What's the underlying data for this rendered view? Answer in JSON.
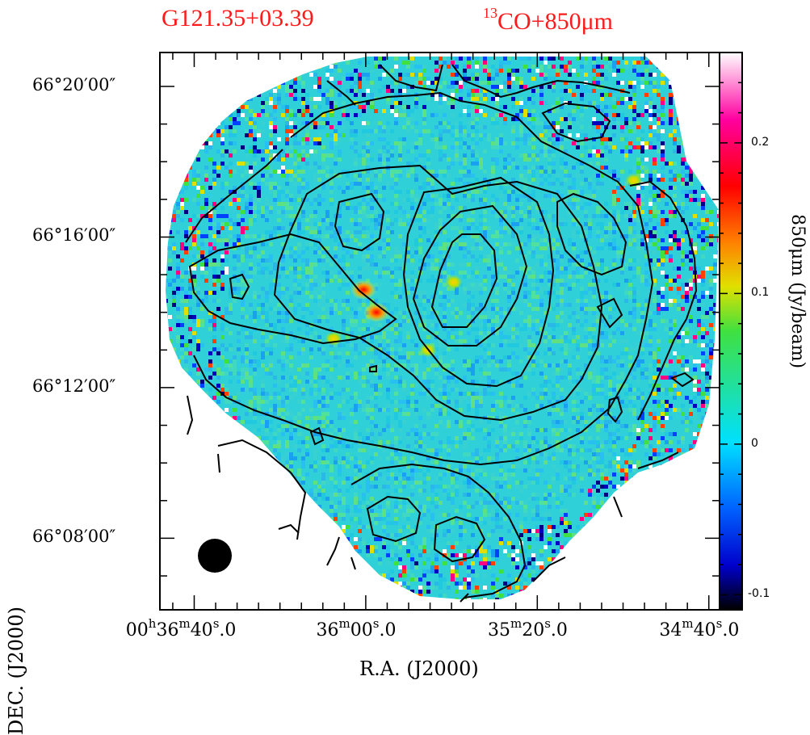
{
  "chart_data": {
    "type": "heatmap",
    "title_left": "G121.35+03.39",
    "title_right_sup": "13",
    "title_right": "CO+850μm",
    "xlabel": "R.A.  (J2000)",
    "ylabel": "DEC.  (J2000)",
    "colorbar_label": "850μm  (Jy/beam)",
    "colorbar_range": [
      -0.11,
      0.26
    ],
    "colorbar_ticks": [
      "-0.1",
      "0",
      "0.1",
      "0.2"
    ],
    "colorbar_tick_values": [
      -0.1,
      0,
      0.1,
      0.2
    ],
    "colormap": [
      "#000000",
      "#0000cc",
      "#0060ff",
      "#00e0ff",
      "#20e0a0",
      "#40e040",
      "#e0e000",
      "#ff8000",
      "#ff0000",
      "#ff00a0",
      "#ffffff"
    ],
    "y_ticks": [
      {
        "label": "66°20′00″",
        "arcmin": 20
      },
      {
        "label": "66°16′00″",
        "arcmin": 16
      },
      {
        "label": "66°12′00″",
        "arcmin": 12
      },
      {
        "label": "66°08′00″",
        "arcmin": 8
      }
    ],
    "y_range_arcmin": [
      6.1,
      20.9
    ],
    "x_ticks": [
      {
        "h": "00",
        "m": "36",
        "s": "40",
        "frac": "0",
        "ra_sec": 2200
      },
      {
        "h": "",
        "m": "36",
        "s": "00",
        "frac": "0",
        "ra_sec": 2160
      },
      {
        "h": "",
        "m": "35",
        "s": "20",
        "frac": "0",
        "ra_sec": 2120
      },
      {
        "h": "",
        "m": "34",
        "s": "40",
        "frac": "0",
        "ra_sec": 2080
      }
    ],
    "x_range_ra_sec": [
      2208,
      2077.5
    ],
    "beam": "filled circle, lower left",
    "peaks": [
      {
        "x_ra_sec": 2160.5,
        "y_arcmin": 14.6,
        "value": 0.17
      },
      {
        "x_ra_sec": 2157.5,
        "y_arcmin": 14.0,
        "value": 0.2
      },
      {
        "x_ra_sec": 2139.5,
        "y_arcmin": 14.8,
        "value": 0.1
      },
      {
        "x_ra_sec": 2097.5,
        "y_arcmin": 17.5,
        "value": 0.1
      },
      {
        "x_ra_sec": 2167.5,
        "y_arcmin": 13.3,
        "value": 0.08
      },
      {
        "x_ra_sec": 2145.5,
        "y_arcmin": 13.0,
        "value": 0.07
      }
    ]
  }
}
